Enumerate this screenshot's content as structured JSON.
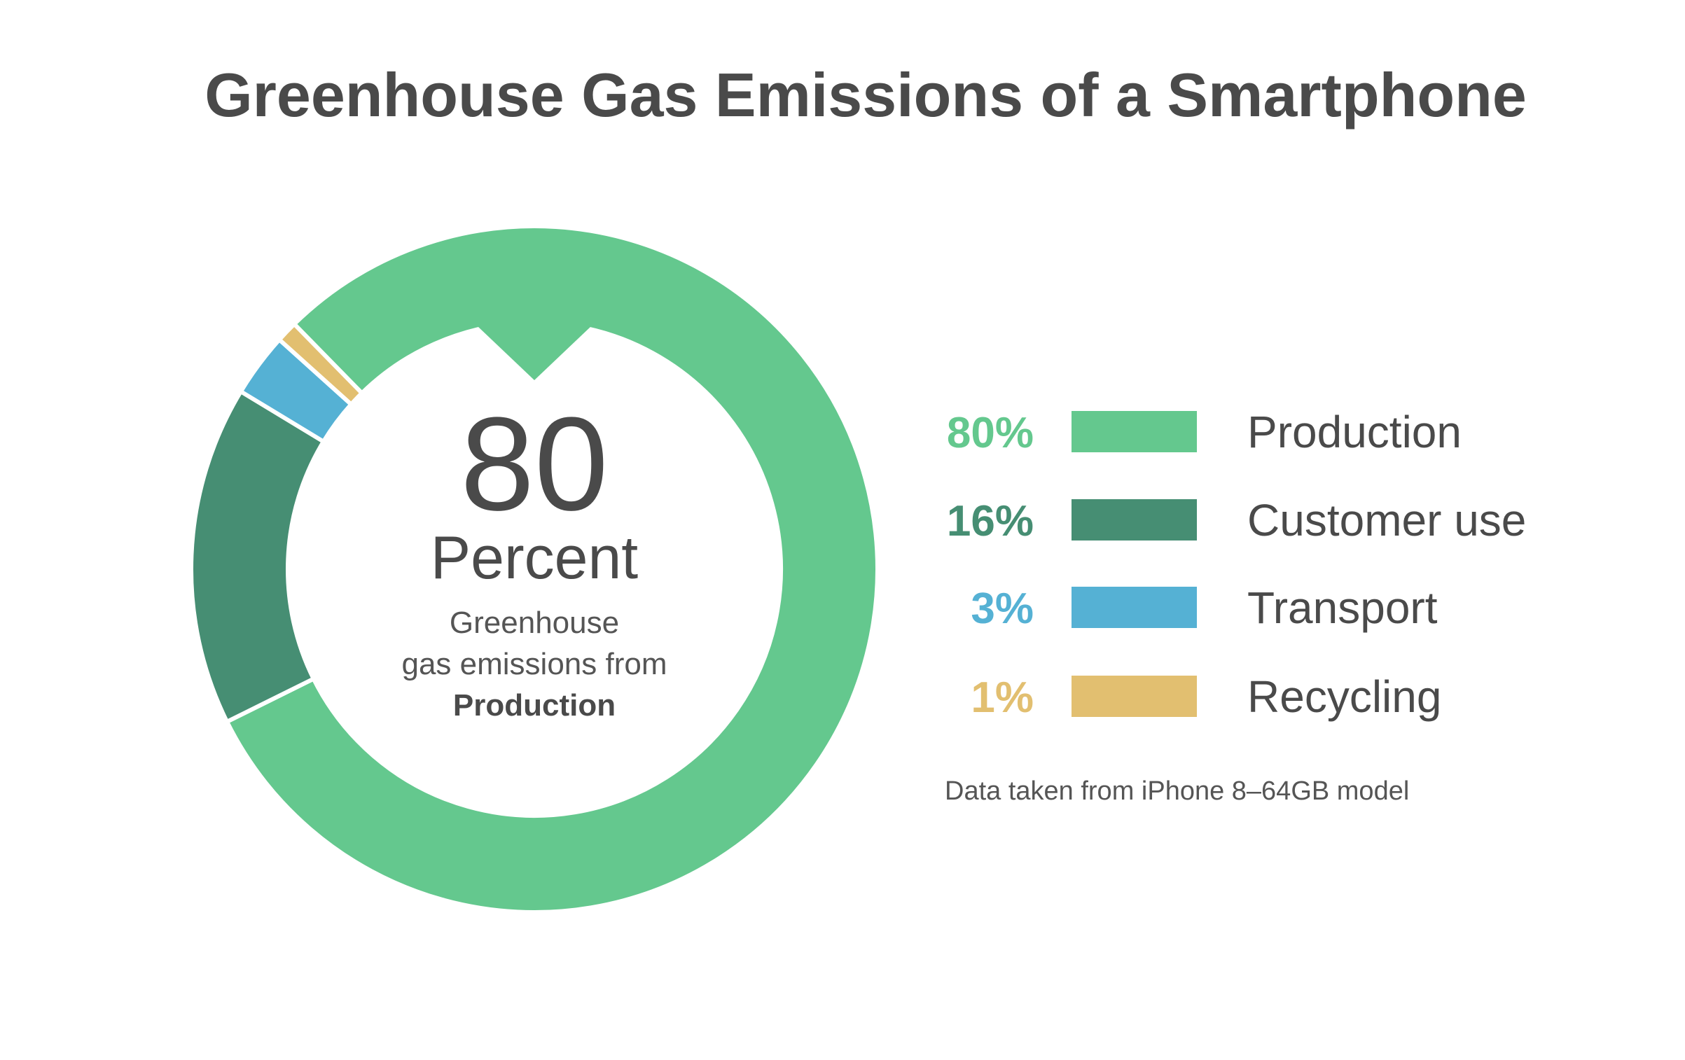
{
  "chart_data": {
    "type": "pie",
    "variant": "donut",
    "title": "Greenhouse Gas Emissions of a Smartphone",
    "categories": [
      "Production",
      "Customer use",
      "Transport",
      "Recycling"
    ],
    "values": [
      80,
      16,
      3,
      1
    ],
    "value_labels": [
      "80%",
      "16%",
      "3%",
      "1%"
    ],
    "colors": [
      "#64C88E",
      "#468E73",
      "#55B1D4",
      "#E2BF70"
    ],
    "legend_placement": "right",
    "center_text": {
      "value": "80",
      "unit": "Percent",
      "line1": "Greenhouse",
      "line2": "gas emissions from",
      "line3": "Production"
    },
    "footnote": "Data taken from iPhone 8–64GB model"
  },
  "text_color": "#4A4A4A"
}
